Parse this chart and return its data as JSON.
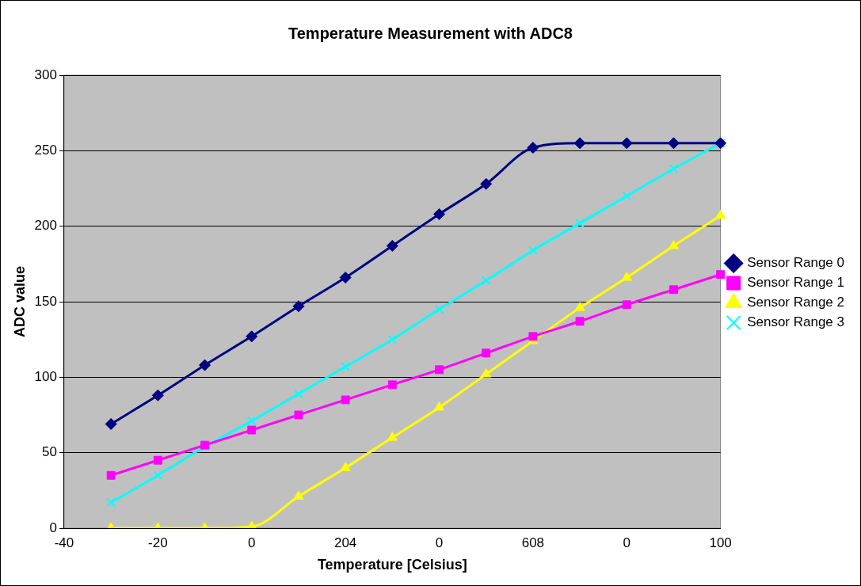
{
  "chart_data": {
    "type": "line",
    "title": "Temperature Measurement with ADC8",
    "xlabel": "Temperature [Celsius]",
    "ylabel": "ADC value",
    "categories": [
      "-40",
      null,
      "-20",
      null,
      "0",
      null,
      "204",
      null,
      "0",
      null,
      "608",
      null,
      "0",
      null,
      "100"
    ],
    "ylim": [
      0,
      300
    ],
    "yticks": [
      0,
      50,
      100,
      150,
      200,
      250,
      300
    ],
    "grid": "y",
    "legend": "right",
    "series": [
      {
        "name": "Sensor Range 0",
        "color": "#000080",
        "marker": "diamond",
        "values": [
          null,
          69,
          88,
          108,
          127,
          147,
          166,
          187,
          208,
          228,
          252,
          255,
          255,
          255,
          255
        ]
      },
      {
        "name": "Sensor Range 1",
        "color": "#ff00ff",
        "marker": "square",
        "values": [
          null,
          35,
          45,
          55,
          65,
          75,
          85,
          95,
          105,
          116,
          127,
          137,
          148,
          158,
          168
        ]
      },
      {
        "name": "Sensor Range 2",
        "color": "#ffff00",
        "marker": "triangle",
        "values": [
          null,
          0,
          0,
          0,
          1,
          21,
          40,
          60,
          80,
          102,
          124,
          146,
          166,
          187,
          207
        ]
      },
      {
        "name": "Sensor Range 3",
        "color": "#00ffff",
        "marker": "cross",
        "values": [
          null,
          17,
          35,
          54,
          71,
          89,
          107,
          125,
          145,
          164,
          184,
          202,
          220,
          238,
          255
        ]
      }
    ]
  }
}
